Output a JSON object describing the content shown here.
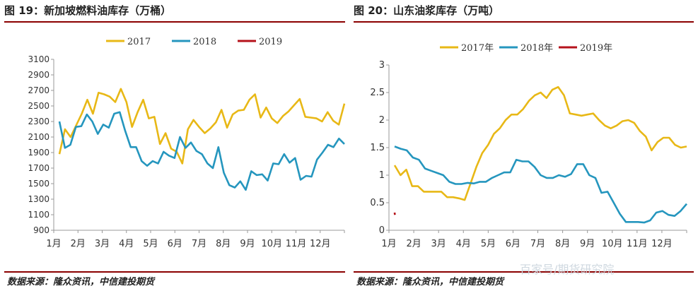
{
  "left": {
    "title": "图 19：新加坡燃料油库存（万桶）",
    "source": "数据来源：隆众资讯，中信建投期货"
  },
  "right": {
    "title": "图 20：山东油浆库存（万吨）",
    "source": "数据来源：隆众资讯，中信建投期货"
  },
  "watermark": "百家号/期货研究院",
  "colors": {
    "2017": "#e8b816",
    "2018": "#2596be",
    "2019": "#b5121b",
    "rule": "#8b0000",
    "axis": "#999999"
  },
  "chart_data": [
    {
      "type": "line",
      "ylim": [
        900,
        3100
      ],
      "yticks": [
        "3100",
        "2900",
        "2700",
        "2500",
        "2300",
        "2100",
        "1900",
        "1700",
        "1500",
        "1300",
        "1100",
        "900"
      ],
      "x_labels": [
        "1月",
        "2月",
        "3月",
        "4月",
        "5月",
        "6月",
        "7月",
        "8月",
        "9月",
        "10月",
        "11月",
        "12月"
      ],
      "series": [
        {
          "name": "2017",
          "values": [
            1880,
            2200,
            2100,
            2250,
            2400,
            2580,
            2400,
            2670,
            2650,
            2620,
            2550,
            2720,
            2550,
            2230,
            2420,
            2580,
            2340,
            2360,
            2010,
            2150,
            1950,
            1910,
            1760,
            2200,
            2320,
            2230,
            2150,
            2210,
            2290,
            2450,
            2220,
            2390,
            2440,
            2450,
            2580,
            2650,
            2350,
            2480,
            2340,
            2280,
            2370,
            2430,
            2510,
            2590,
            2360,
            2350,
            2340,
            2300,
            2420,
            2310,
            2260,
            2530
          ]
        },
        {
          "name": "2018",
          "values": [
            2300,
            1960,
            2000,
            2230,
            2240,
            2390,
            2300,
            2140,
            2260,
            2220,
            2400,
            2420,
            2180,
            1970,
            1970,
            1790,
            1730,
            1790,
            1760,
            1910,
            1860,
            1830,
            2100,
            1960,
            2030,
            1920,
            1880,
            1760,
            1700,
            1970,
            1640,
            1480,
            1450,
            1530,
            1420,
            1660,
            1610,
            1620,
            1540,
            1760,
            1750,
            1880,
            1770,
            1830,
            1550,
            1600,
            1590,
            1810,
            1900,
            2000,
            1970,
            2080,
            2010
          ]
        },
        {
          "name": "2019",
          "values": []
        }
      ],
      "legend": [
        "2017",
        "2018",
        "2019"
      ],
      "legend_position": "top"
    },
    {
      "type": "line",
      "ylim": [
        0,
        3
      ],
      "yticks": [
        "3",
        "2.5",
        "2",
        "1.5",
        "1",
        "0.5",
        "0"
      ],
      "x_labels": [
        "1月",
        "2月",
        "3月",
        "4月",
        "5月",
        "6月",
        "7月",
        "8月",
        "9月",
        "10月",
        "11月",
        "12月"
      ],
      "series": [
        {
          "name": "2017年",
          "values": [
            1.18,
            1.0,
            1.1,
            0.8,
            0.8,
            0.7,
            0.7,
            0.7,
            0.7,
            0.6,
            0.6,
            0.58,
            0.55,
            0.85,
            1.15,
            1.4,
            1.55,
            1.75,
            1.85,
            2.0,
            2.1,
            2.1,
            2.2,
            2.35,
            2.45,
            2.5,
            2.4,
            2.55,
            2.6,
            2.45,
            2.12,
            2.1,
            2.08,
            2.1,
            2.12,
            2.0,
            1.9,
            1.85,
            1.9,
            1.98,
            2.0,
            1.95,
            1.8,
            1.7,
            1.45,
            1.6,
            1.68,
            1.68,
            1.55,
            1.5,
            1.52
          ]
        },
        {
          "name": "2018年",
          "values": [
            1.52,
            1.48,
            1.45,
            1.32,
            1.28,
            1.12,
            1.08,
            1.04,
            1.0,
            0.88,
            0.84,
            0.84,
            0.86,
            0.85,
            0.88,
            0.88,
            0.95,
            1.0,
            1.05,
            1.05,
            1.28,
            1.25,
            1.25,
            1.15,
            1.0,
            0.95,
            0.95,
            1.0,
            0.97,
            1.02,
            1.2,
            1.2,
            1.0,
            0.95,
            0.68,
            0.7,
            0.5,
            0.3,
            0.15,
            0.15,
            0.15,
            0.14,
            0.18,
            0.32,
            0.35,
            0.28,
            0.26,
            0.35,
            0.48
          ]
        },
        {
          "name": "2019年",
          "values": [
            0.32,
            0.28
          ]
        }
      ],
      "legend": [
        "2017年",
        "2018年",
        "2019年"
      ],
      "legend_position": "top"
    }
  ]
}
